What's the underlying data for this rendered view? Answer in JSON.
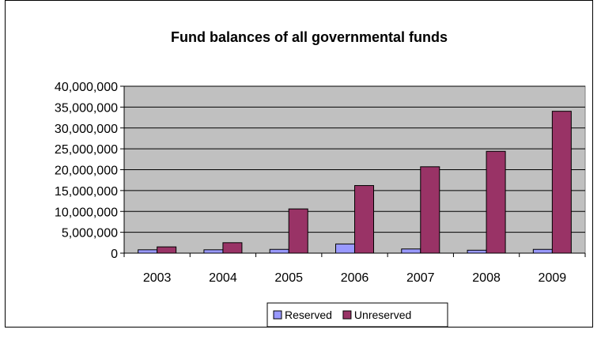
{
  "chart_data": {
    "type": "bar",
    "title": "Fund balances of all governmental funds",
    "xlabel": "",
    "ylabel": "",
    "categories": [
      "2003",
      "2004",
      "2005",
      "2006",
      "2007",
      "2008",
      "2009"
    ],
    "series": [
      {
        "name": "Reserved",
        "color": "#9999ff",
        "values": [
          800000,
          800000,
          900000,
          2200000,
          1000000,
          700000,
          900000
        ]
      },
      {
        "name": "Unreserved",
        "color": "#993366",
        "values": [
          1500000,
          2500000,
          10600000,
          16200000,
          20700000,
          24400000,
          34000000
        ]
      }
    ],
    "ylim": [
      0,
      40000000
    ],
    "yticks": [
      "0",
      "5,000,000",
      "10,000,000",
      "15,000,000",
      "20,000,000",
      "25,000,000",
      "30,000,000",
      "35,000,000",
      "40,000,000"
    ],
    "ytick_values": [
      0,
      5000000,
      10000000,
      15000000,
      20000000,
      25000000,
      30000000,
      35000000,
      40000000
    ],
    "grid": true,
    "plot_background": "#c0c0c0",
    "legend_position": "bottom"
  }
}
